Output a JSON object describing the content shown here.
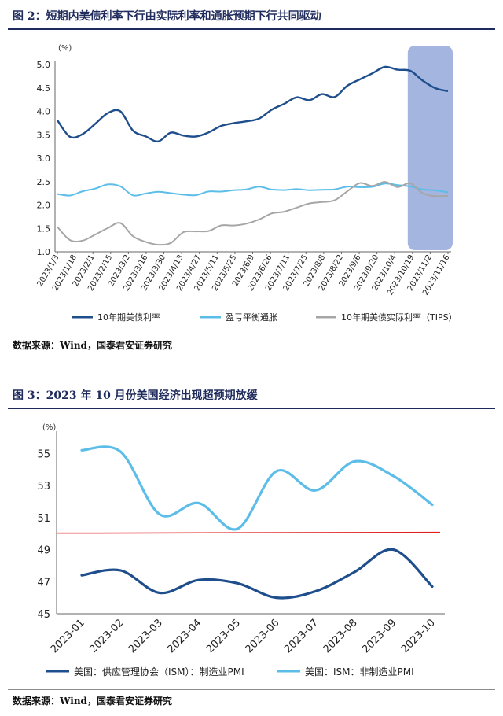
{
  "figure2": {
    "title": "图 2：短期内美债利率下行由实际利率和通胀预期下行共同驱动",
    "source": "数据来源：Wind，国泰君安证券研究"
  },
  "figure3": {
    "title": "图 3：2023 年 10 月份美国经济出现超预期放缓",
    "source": "数据来源：Wind，国泰君安证券研究"
  },
  "chart_data": [
    {
      "type": "line",
      "unit": "(%)",
      "ylim": [
        1.0,
        5.0
      ],
      "yticks": [
        "5.0",
        "4.5",
        "4.0",
        "3.5",
        "3.0",
        "2.5",
        "2.0",
        "1.5",
        "1.0"
      ],
      "xticks": [
        "2023/1/3",
        "2023/1/18",
        "2023/2/1",
        "2023/2/15",
        "2023/3/2",
        "2023/3/16",
        "2023/3/30",
        "2023/4/13",
        "2023/4/27",
        "2023/5/11",
        "2023/5/25",
        "2023/6/9",
        "2023/6/26",
        "2023/7/11",
        "2023/7/25",
        "2023/8/8",
        "2023/8/22",
        "2023/9/6",
        "2023/9/20",
        "2023/10/4",
        "2023/10/19",
        "2023/11/2",
        "2023/11/16"
      ],
      "highlight": {
        "from": "2023/10/19",
        "to": "2023/11/16",
        "color": "#8da3d8"
      },
      "series": [
        {
          "name": "10年期美债利率",
          "color": "#1f4e8c",
          "values": [
            3.79,
            3.45,
            3.52,
            3.75,
            3.95,
            4.0,
            3.6,
            3.45,
            3.35,
            3.55,
            3.5,
            3.45,
            3.55,
            3.7,
            3.73,
            3.78,
            3.85,
            4.05,
            4.15,
            4.3,
            4.25,
            4.35,
            4.3,
            4.55,
            4.7,
            4.8,
            4.95,
            4.9,
            4.85,
            4.65,
            4.5,
            4.45
          ]
        },
        {
          "name": "盈亏平衡通胀",
          "color": "#5bbde8",
          "values": [
            2.24,
            2.22,
            2.28,
            2.35,
            2.45,
            2.38,
            2.2,
            2.25,
            2.3,
            2.24,
            2.22,
            2.22,
            2.27,
            2.28,
            2.32,
            2.35,
            2.38,
            2.33,
            2.33,
            2.32,
            2.31,
            2.33,
            2.35,
            2.38,
            2.38,
            2.4,
            2.44,
            2.42,
            2.4,
            2.35,
            2.3,
            2.27
          ]
        },
        {
          "name": "10年期美债实际利率（TIPS）",
          "color": "#a6a6a6",
          "values": [
            1.52,
            1.25,
            1.25,
            1.35,
            1.5,
            1.62,
            1.35,
            1.2,
            1.15,
            1.2,
            1.4,
            1.43,
            1.45,
            1.58,
            1.55,
            1.6,
            1.7,
            1.8,
            1.85,
            1.95,
            2.05,
            2.05,
            2.1,
            2.3,
            2.45,
            2.4,
            2.5,
            2.4,
            2.45,
            2.25,
            2.2,
            2.18
          ]
        }
      ]
    },
    {
      "type": "line",
      "unit": "(%)",
      "ylim": [
        45,
        56
      ],
      "yticks": [
        "55",
        "53",
        "51",
        "49",
        "47",
        "45"
      ],
      "categories": [
        "2023-01",
        "2023-02",
        "2023-03",
        "2023-04",
        "2023-05",
        "2023-06",
        "2023-07",
        "2023-08",
        "2023-09",
        "2023-10"
      ],
      "reference_line": {
        "value": 50,
        "color": "#e02020"
      },
      "series": [
        {
          "name": "美国：供应管理协会（ISM）：制造业PMI",
          "color": "#1f4e8c",
          "values": [
            47.4,
            47.7,
            46.3,
            47.1,
            46.9,
            46.0,
            46.4,
            47.6,
            49.0,
            46.7
          ]
        },
        {
          "name": "美国：ISM：非制造业PMI",
          "color": "#5bbde8",
          "values": [
            55.2,
            55.1,
            51.2,
            51.9,
            50.3,
            53.9,
            52.7,
            54.5,
            53.6,
            51.8
          ]
        }
      ]
    }
  ]
}
